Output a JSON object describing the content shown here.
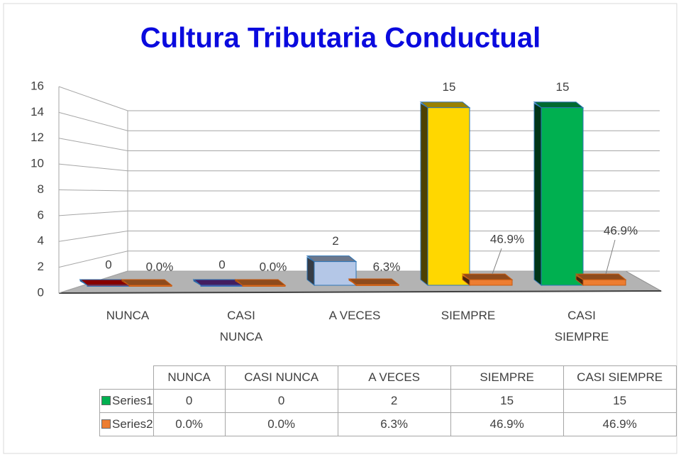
{
  "chart_data": {
    "type": "bar3d",
    "title": "Cultura Tributaria Conductual",
    "categories": [
      "NUNCA",
      "CASI NUNCA",
      "A VECES",
      "SIEMPRE",
      "CASI SIEMPRE"
    ],
    "series": [
      {
        "name": "Series1",
        "color": "#00b050",
        "colors": [
          "#e00000",
          "#7030a0",
          "#b4c7e7",
          "#ffd700",
          "#00b050"
        ],
        "values": [
          0,
          0,
          2,
          15,
          15
        ]
      },
      {
        "name": "Series2",
        "color": "#ed7d31",
        "values": [
          0,
          0,
          0.063,
          0.469,
          0.469
        ],
        "value_labels": [
          "0.0%",
          "0.0%",
          "6.3%",
          "46.9%",
          "46.9%"
        ]
      }
    ],
    "ylim": [
      0,
      16
    ],
    "yticks": [
      0,
      2,
      4,
      6,
      8,
      10,
      12,
      14,
      16
    ],
    "grid": true
  }
}
